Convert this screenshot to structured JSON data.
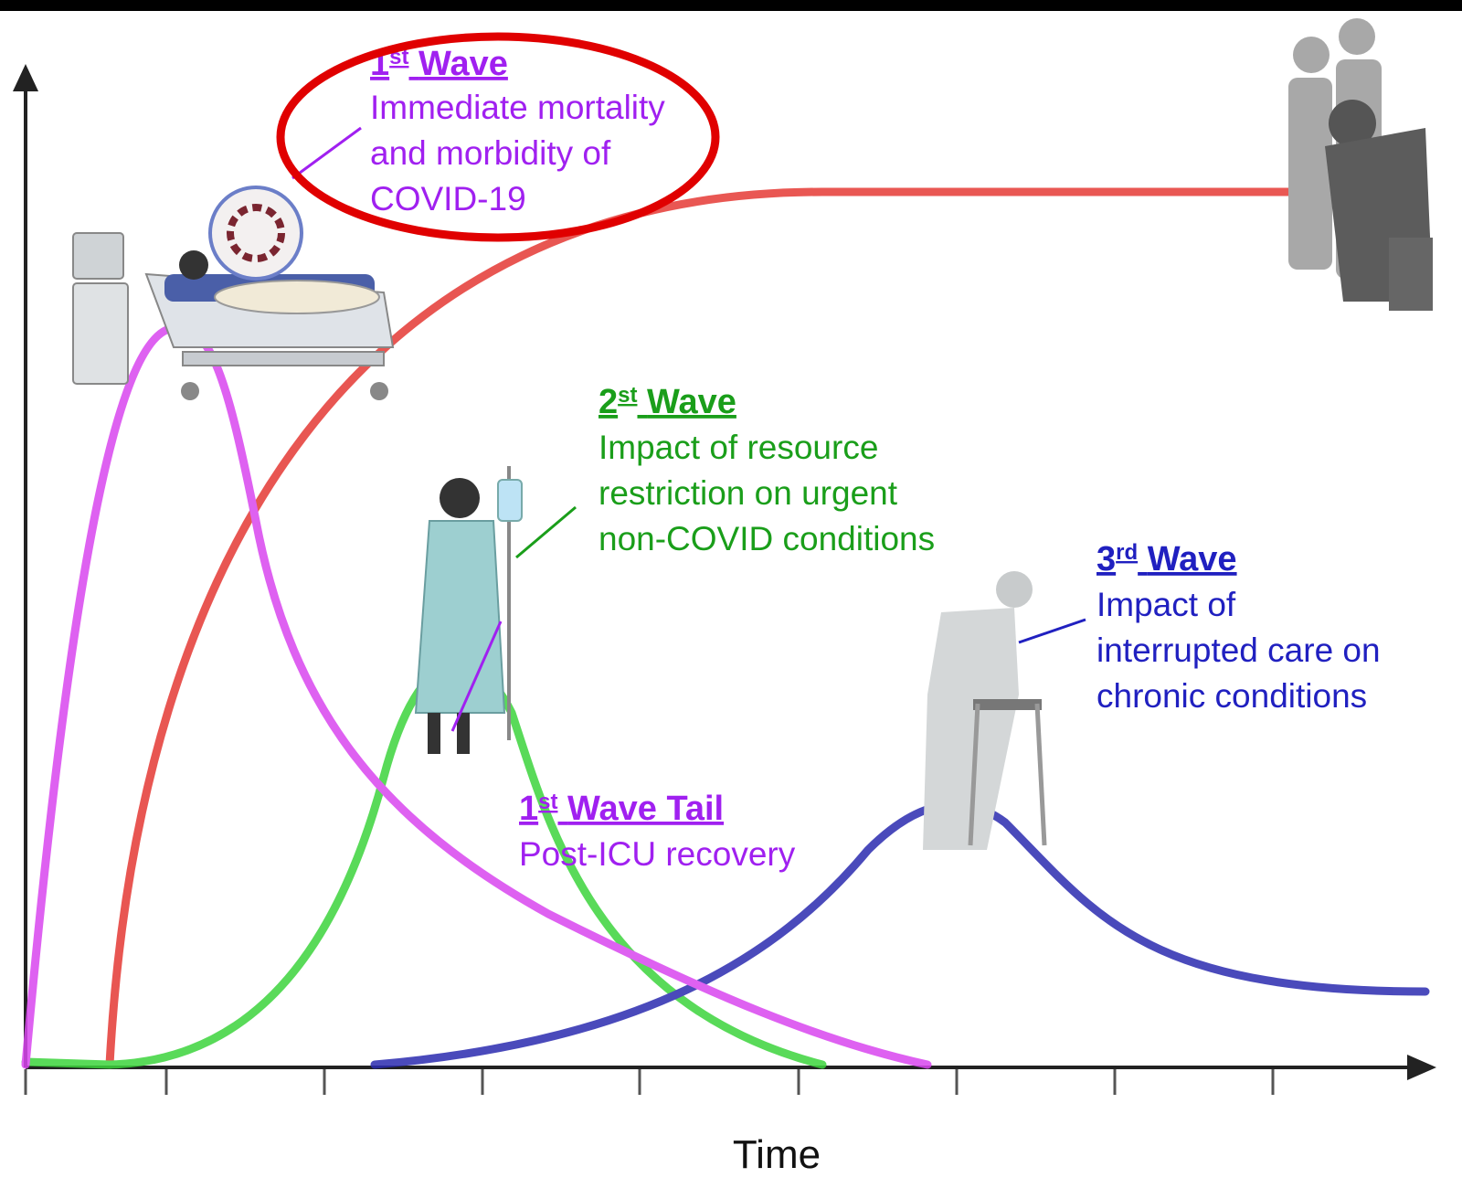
{
  "waves": [
    {
      "ordinal": "1",
      "suffix": "st",
      "label": "Wave",
      "lines": [
        "Immediate mortality",
        "and morbidity of",
        "COVID-19"
      ]
    },
    {
      "ordinal": "2",
      "suffix": "st",
      "label": "Wave",
      "lines": [
        "Impact of resource",
        "restriction on urgent",
        "non-COVID conditions"
      ]
    },
    {
      "ordinal": "3",
      "suffix": "rd",
      "label": "Wave",
      "lines": [
        "Impact of",
        "interrupted care on",
        "chronic conditions"
      ]
    },
    {
      "ordinal": "1",
      "suffix": "st",
      "label": "Wave Tail",
      "lines": [
        "Post-ICU recovery"
      ]
    }
  ],
  "x_axis_label": "Time"
}
